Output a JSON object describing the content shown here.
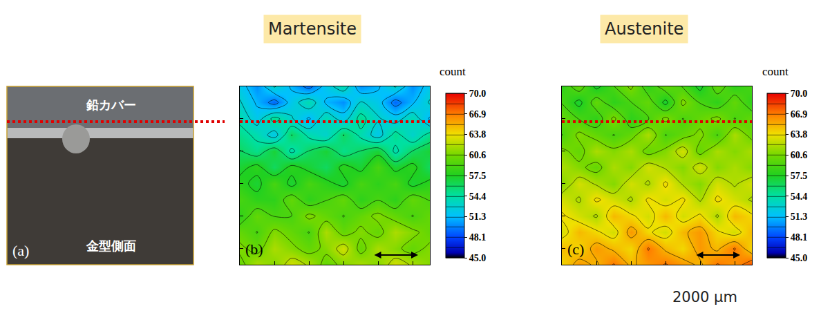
{
  "chart_data": [
    {
      "type": "contour",
      "title": "Martensite",
      "annotations": [
        "(b)"
      ],
      "tick_labels": false,
      "colorbar": {
        "title": "count",
        "range": [
          45,
          70
        ],
        "ticks": [
          {
            "value": 45,
            "label": "45.0"
          },
          {
            "value": 48.125,
            "label": "48.1"
          },
          {
            "value": 51.25,
            "label": "51.3"
          },
          {
            "value": 54.375,
            "label": "54.4"
          },
          {
            "value": 57.5,
            "label": "57.5"
          },
          {
            "value": 60.625,
            "label": "60.6"
          },
          {
            "value": 63.75,
            "label": "63.8"
          },
          {
            "value": 66.875,
            "label": "66.9"
          },
          {
            "value": 70,
            "label": "70.0"
          }
        ]
      },
      "cells": [
        [
          52,
          50,
          53,
          51,
          49,
          52,
          54,
          50,
          51,
          53,
          50,
          52
        ],
        [
          53,
          51,
          49,
          52,
          54,
          51,
          50,
          53,
          52,
          49,
          51,
          53
        ],
        [
          54,
          52,
          55,
          53,
          51,
          54,
          52,
          55,
          53,
          52,
          54,
          51
        ],
        [
          55,
          54,
          52,
          56,
          54,
          53,
          56,
          54,
          52,
          55,
          53,
          55
        ],
        [
          56,
          55,
          57,
          54,
          56,
          57,
          55,
          56,
          57,
          54,
          56,
          57
        ],
        [
          57,
          58,
          56,
          58,
          57,
          56,
          58,
          57,
          59,
          57,
          58,
          56
        ],
        [
          58,
          57,
          59,
          57,
          59,
          58,
          57,
          59,
          58,
          59,
          57,
          58
        ],
        [
          59,
          58,
          58,
          60,
          58,
          59,
          60,
          58,
          59,
          58,
          60,
          59
        ],
        [
          58,
          60,
          59,
          59,
          61,
          60,
          59,
          60,
          61,
          60,
          59,
          60
        ],
        [
          60,
          59,
          61,
          60,
          59,
          62,
          60,
          61,
          60,
          62,
          61,
          60
        ],
        [
          61,
          60,
          62,
          61,
          60,
          61,
          63,
          60,
          62,
          61,
          60,
          61
        ],
        [
          60,
          62,
          61,
          63,
          62,
          60,
          61,
          62,
          61,
          63,
          62,
          61
        ]
      ]
    },
    {
      "type": "contour",
      "title": "Austenite",
      "annotations": [
        "(c)"
      ],
      "tick_labels": false,
      "colorbar": {
        "title": "count",
        "range": [
          45,
          70
        ],
        "ticks": [
          {
            "value": 45,
            "label": "45.0"
          },
          {
            "value": 48.125,
            "label": "48.1"
          },
          {
            "value": 51.25,
            "label": "51.3"
          },
          {
            "value": 54.375,
            "label": "54.4"
          },
          {
            "value": 57.5,
            "label": "57.5"
          },
          {
            "value": 60.625,
            "label": "60.6"
          },
          {
            "value": 63.75,
            "label": "63.8"
          },
          {
            "value": 66.875,
            "label": "66.9"
          },
          {
            "value": 70,
            "label": "70.0"
          }
        ]
      },
      "cells": [
        [
          58,
          60,
          57,
          59,
          61,
          58,
          60,
          59,
          57,
          60,
          58,
          59
        ],
        [
          59,
          57,
          60,
          58,
          59,
          60,
          57,
          61,
          59,
          58,
          60,
          58
        ],
        [
          60,
          59,
          58,
          61,
          58,
          59,
          61,
          59,
          60,
          61,
          59,
          60
        ],
        [
          59,
          61,
          60,
          59,
          60,
          62,
          59,
          60,
          61,
          59,
          62,
          60
        ],
        [
          61,
          60,
          62,
          61,
          62,
          60,
          61,
          63,
          60,
          62,
          61,
          62
        ],
        [
          62,
          61,
          60,
          62,
          61,
          63,
          62,
          61,
          63,
          61,
          62,
          61
        ],
        [
          61,
          63,
          62,
          61,
          63,
          62,
          64,
          62,
          61,
          63,
          62,
          63
        ],
        [
          63,
          62,
          64,
          63,
          62,
          64,
          63,
          64,
          62,
          64,
          63,
          62
        ],
        [
          64,
          63,
          62,
          65,
          64,
          63,
          65,
          63,
          64,
          62,
          65,
          64
        ],
        [
          63,
          65,
          64,
          63,
          66,
          64,
          63,
          65,
          66,
          64,
          63,
          65
        ],
        [
          65,
          64,
          66,
          65,
          64,
          67,
          65,
          64,
          66,
          65,
          67,
          64
        ],
        [
          64,
          66,
          65,
          67,
          65,
          66,
          67,
          66,
          65,
          67,
          66,
          68
        ]
      ]
    }
  ],
  "photo": {
    "label": "(a)",
    "top_text": "鉛カバー",
    "bottom_text": "金型側面"
  },
  "scale_bar": "2000 μm"
}
